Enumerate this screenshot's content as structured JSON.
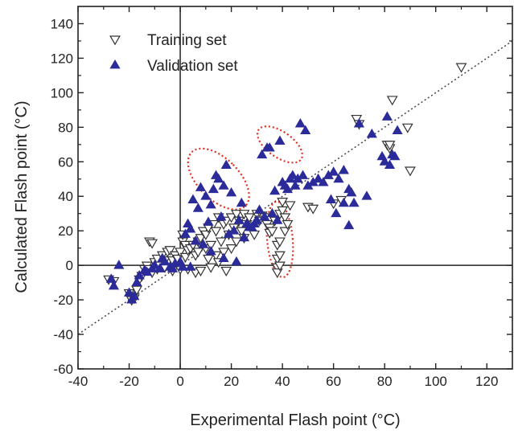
{
  "chart_data": {
    "type": "scatter",
    "xlabel": "Experimental Flash point (°C)",
    "ylabel": "Calculated Flash point (°C)",
    "xlim": [
      -40,
      130
    ],
    "ylim": [
      -60,
      150
    ],
    "xticks": [
      -40,
      -20,
      0,
      20,
      40,
      60,
      80,
      100,
      120
    ],
    "yticks": [
      -60,
      -40,
      -20,
      0,
      20,
      40,
      60,
      80,
      100,
      120,
      140
    ],
    "grid": false,
    "legend_position": "top-left",
    "reference_line": {
      "style": "dotted",
      "points": [
        [
          -40,
          -40
        ],
        [
          130,
          130
        ]
      ]
    },
    "zero_lines": {
      "x": 0,
      "y": 0
    },
    "annotations": [
      {
        "shape": "dotted-ellipse",
        "color": "#e03020",
        "center": [
          15,
          50
        ],
        "rx": 8,
        "ry": 22,
        "rotation": -45
      },
      {
        "shape": "dotted-ellipse",
        "color": "#e03020",
        "center": [
          39,
          70
        ],
        "rx": 5,
        "ry": 15,
        "rotation": -55
      },
      {
        "shape": "dotted-ellipse",
        "color": "#e03020",
        "center": [
          39,
          15
        ],
        "rx": 5,
        "ry": 22,
        "rotation": -5
      }
    ],
    "series": [
      {
        "name": "Training set",
        "marker": "triangle-down-open",
        "color": "#333333",
        "points": [
          [
            -28,
            -8
          ],
          [
            -26,
            -9
          ],
          [
            -20,
            -16
          ],
          [
            -19,
            -18
          ],
          [
            -19,
            -20
          ],
          [
            -18,
            -19
          ],
          [
            -17,
            -14
          ],
          [
            -16,
            -8
          ],
          [
            -15,
            -6
          ],
          [
            -14,
            -2
          ],
          [
            -13,
            0
          ],
          [
            -12,
            14
          ],
          [
            -11,
            13
          ],
          [
            -12,
            -2
          ],
          [
            -11,
            -4
          ],
          [
            -10,
            2
          ],
          [
            -9,
            4
          ],
          [
            -9,
            -2
          ],
          [
            -8,
            0
          ],
          [
            -7,
            6
          ],
          [
            -6,
            3
          ],
          [
            -6,
            -1
          ],
          [
            -5,
            8
          ],
          [
            -4,
            9
          ],
          [
            -3,
            3
          ],
          [
            -3,
            -3
          ],
          [
            -2,
            6
          ],
          [
            -1,
            4
          ],
          [
            0,
            8
          ],
          [
            0,
            -2
          ],
          [
            1,
            14
          ],
          [
            1,
            18
          ],
          [
            2,
            12
          ],
          [
            2,
            5
          ],
          [
            3,
            9
          ],
          [
            3,
            -2
          ],
          [
            4,
            10
          ],
          [
            5,
            12
          ],
          [
            6,
            6
          ],
          [
            6,
            -4
          ],
          [
            7,
            14
          ],
          [
            7,
            8
          ],
          [
            8,
            16
          ],
          [
            8,
            -3
          ],
          [
            9,
            20
          ],
          [
            10,
            18
          ],
          [
            10,
            10
          ],
          [
            11,
            22
          ],
          [
            11,
            4
          ],
          [
            12,
            12
          ],
          [
            12,
            -1
          ],
          [
            13,
            24
          ],
          [
            14,
            20
          ],
          [
            14,
            6
          ],
          [
            15,
            28
          ],
          [
            15,
            2
          ],
          [
            16,
            14
          ],
          [
            17,
            24
          ],
          [
            17,
            8
          ],
          [
            18,
            26
          ],
          [
            18,
            -3
          ],
          [
            19,
            18
          ],
          [
            20,
            28
          ],
          [
            20,
            10
          ],
          [
            21,
            22
          ],
          [
            22,
            30
          ],
          [
            22,
            14
          ],
          [
            23,
            26
          ],
          [
            24,
            20
          ],
          [
            25,
            30
          ],
          [
            25,
            16
          ],
          [
            26,
            24
          ],
          [
            27,
            28
          ],
          [
            28,
            22
          ],
          [
            30,
            30
          ],
          [
            29,
            18
          ],
          [
            31,
            26
          ],
          [
            32,
            29
          ],
          [
            33,
            28
          ],
          [
            34,
            24
          ],
          [
            35,
            22
          ],
          [
            35,
            19
          ],
          [
            36,
            20
          ],
          [
            37,
            26
          ],
          [
            38,
            12
          ],
          [
            38,
            4
          ],
          [
            38,
            -1
          ],
          [
            38,
            -4
          ],
          [
            39,
            0
          ],
          [
            39,
            6
          ],
          [
            39,
            14
          ],
          [
            39,
            30
          ],
          [
            40,
            37
          ],
          [
            40,
            32
          ],
          [
            41,
            20
          ],
          [
            41,
            28
          ],
          [
            42,
            24
          ],
          [
            43,
            35
          ],
          [
            50,
            34
          ],
          [
            52,
            33
          ],
          [
            60,
            36
          ],
          [
            63,
            38
          ],
          [
            69,
            85
          ],
          [
            70,
            82
          ],
          [
            81,
            70
          ],
          [
            82,
            68
          ],
          [
            82,
            70
          ],
          [
            83,
            96
          ],
          [
            89,
            80
          ],
          [
            90,
            55
          ],
          [
            110,
            115
          ]
        ]
      },
      {
        "name": "Validation set",
        "marker": "triangle-up-filled",
        "color": "#2b2b9a",
        "points": [
          [
            -27,
            -8
          ],
          [
            -26,
            -12
          ],
          [
            -24,
            0
          ],
          [
            -20,
            -16
          ],
          [
            -19,
            -20
          ],
          [
            -18,
            -18
          ],
          [
            -17,
            -10
          ],
          [
            -16,
            -6
          ],
          [
            -14,
            -3
          ],
          [
            -13,
            -4
          ],
          [
            -11,
            -2
          ],
          [
            -10,
            0
          ],
          [
            -8,
            -2
          ],
          [
            -7,
            4
          ],
          [
            -6,
            2
          ],
          [
            -4,
            -1
          ],
          [
            -3,
            -2
          ],
          [
            -2,
            1
          ],
          [
            0,
            2
          ],
          [
            1,
            -1
          ],
          [
            2,
            18
          ],
          [
            3,
            24
          ],
          [
            4,
            21
          ],
          [
            4,
            -1
          ],
          [
            5,
            38
          ],
          [
            6,
            14
          ],
          [
            7,
            33
          ],
          [
            8,
            45
          ],
          [
            9,
            12
          ],
          [
            10,
            40
          ],
          [
            11,
            25
          ],
          [
            12,
            35
          ],
          [
            12,
            8
          ],
          [
            13,
            44
          ],
          [
            14,
            52
          ],
          [
            15,
            50
          ],
          [
            16,
            28
          ],
          [
            17,
            46
          ],
          [
            17,
            4
          ],
          [
            18,
            58
          ],
          [
            19,
            18
          ],
          [
            20,
            42
          ],
          [
            21,
            20
          ],
          [
            22,
            2
          ],
          [
            23,
            26
          ],
          [
            24,
            36
          ],
          [
            25,
            16
          ],
          [
            26,
            24
          ],
          [
            27,
            22
          ],
          [
            28,
            22
          ],
          [
            29,
            24
          ],
          [
            30,
            26
          ],
          [
            31,
            32
          ],
          [
            32,
            64
          ],
          [
            33,
            28
          ],
          [
            34,
            68
          ],
          [
            35,
            68
          ],
          [
            36,
            30
          ],
          [
            37,
            43
          ],
          [
            38,
            26
          ],
          [
            39,
            72
          ],
          [
            40,
            48
          ],
          [
            41,
            46
          ],
          [
            42,
            44
          ],
          [
            43,
            50
          ],
          [
            44,
            52
          ],
          [
            45,
            46
          ],
          [
            46,
            50
          ],
          [
            47,
            82
          ],
          [
            48,
            52
          ],
          [
            49,
            78
          ],
          [
            50,
            46
          ],
          [
            52,
            48
          ],
          [
            54,
            50
          ],
          [
            56,
            48
          ],
          [
            58,
            52
          ],
          [
            60,
            54
          ],
          [
            61,
            30
          ],
          [
            62,
            50
          ],
          [
            64,
            55
          ],
          [
            66,
            23
          ],
          [
            67,
            42
          ],
          [
            68,
            36
          ],
          [
            70,
            82
          ],
          [
            73,
            40
          ],
          [
            75,
            76
          ],
          [
            79,
            63
          ],
          [
            80,
            60
          ],
          [
            81,
            86
          ],
          [
            82,
            58
          ],
          [
            83,
            64
          ],
          [
            84,
            63
          ],
          [
            85,
            78
          ],
          [
            59,
            38
          ],
          [
            64,
            36
          ],
          [
            66,
            44
          ]
        ]
      }
    ]
  }
}
